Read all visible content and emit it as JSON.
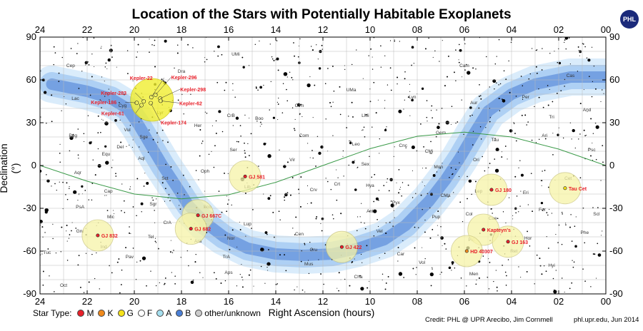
{
  "chart_data": {
    "type": "scatter",
    "title": "Location of the Stars with Potentially Habitable Exoplanets",
    "xlabel": "Right Ascension (hours)",
    "ylabel": "Declination (°)",
    "xlim": [
      24,
      0
    ],
    "ylim": [
      -90,
      90
    ],
    "x_ticks": [
      "24",
      "22",
      "20",
      "18",
      "16",
      "14",
      "12",
      "10",
      "08",
      "06",
      "04",
      "02",
      "00"
    ],
    "y_ticks": [
      "90",
      "60",
      "30",
      "0",
      "-30",
      "-60",
      "-90"
    ],
    "legend": {
      "label": "Star Type:",
      "entries": [
        {
          "name": "M",
          "color": "#e8202a"
        },
        {
          "name": "K",
          "color": "#f08a1c"
        },
        {
          "name": "G",
          "color": "#f6e21a"
        },
        {
          "name": "F",
          "color": "#ffffff"
        },
        {
          "name": "A",
          "color": "#a6e0f0"
        },
        {
          "name": "B",
          "color": "#4a7fd6"
        },
        {
          "name": "other/unknown",
          "color": "#cccccc"
        }
      ]
    },
    "stars": [
      {
        "name": "Kepler-22",
        "ra": 19.28,
        "dec": 47.9,
        "type": "G"
      },
      {
        "name": "Kepler-283",
        "ra": 19.6,
        "dec": 45.0,
        "type": "K"
      },
      {
        "name": "Kepler-186",
        "ra": 19.9,
        "dec": 43.9,
        "type": "M"
      },
      {
        "name": "Kepler-61",
        "ra": 19.7,
        "dec": 42.2,
        "type": "K"
      },
      {
        "name": "Kepler-296",
        "ra": 19.1,
        "dec": 49.5,
        "type": "M"
      },
      {
        "name": "Kepler-298",
        "ra": 18.9,
        "dec": 47.0,
        "type": "K"
      },
      {
        "name": "Kepler-62",
        "ra": 18.88,
        "dec": 45.3,
        "type": "K"
      },
      {
        "name": "Kepler-174",
        "ra": 19.3,
        "dec": 43.7,
        "type": "K"
      },
      {
        "name": "GJ 581",
        "ra": 15.3,
        "dec": -7.7,
        "type": "M"
      },
      {
        "name": "GJ 667C",
        "ra": 17.3,
        "dec": -34.9,
        "type": "M"
      },
      {
        "name": "GJ 682",
        "ra": 17.6,
        "dec": -44.3,
        "type": "M"
      },
      {
        "name": "GJ 832",
        "ra": 21.55,
        "dec": -49.0,
        "type": "M"
      },
      {
        "name": "GJ 422",
        "ra": 11.2,
        "dec": -57.1,
        "type": "M"
      },
      {
        "name": "GJ 180",
        "ra": 4.85,
        "dec": -17.0,
        "type": "M"
      },
      {
        "name": "Tau Cet",
        "ra": 1.73,
        "dec": -15.9,
        "type": "G"
      },
      {
        "name": "Kapteyn's",
        "ra": 5.19,
        "dec": -45.0,
        "type": "M"
      },
      {
        "name": "HD 40307",
        "ra": 5.9,
        "dec": -60.0,
        "type": "K"
      },
      {
        "name": "GJ 163",
        "ra": 4.15,
        "dec": -53.4,
        "type": "M"
      }
    ],
    "constellation_labels": [
      {
        "name": "UMi",
        "ra": 15.7,
        "dec": 77.0
      },
      {
        "name": "Cep",
        "ra": 22.7,
        "dec": 69.0
      },
      {
        "name": "Dra",
        "ra": 18.0,
        "dec": 65.0
      },
      {
        "name": "Cam",
        "ra": 6.0,
        "dec": 69.0
      },
      {
        "name": "Cas",
        "ra": 1.5,
        "dec": 62.0
      },
      {
        "name": "Lac",
        "ra": 22.5,
        "dec": 46.0
      },
      {
        "name": "CVn",
        "ra": 13.0,
        "dec": 41.0
      },
      {
        "name": "UMa",
        "ra": 10.8,
        "dec": 52.0
      },
      {
        "name": "Lyn",
        "ra": 8.2,
        "dec": 47.0
      },
      {
        "name": "Aur",
        "ra": 5.6,
        "dec": 43.0
      },
      {
        "name": "Per",
        "ra": 3.4,
        "dec": 47.0
      },
      {
        "name": "And",
        "ra": 0.8,
        "dec": 38.0
      },
      {
        "name": "Cyg",
        "ra": 20.5,
        "dec": 41.0
      },
      {
        "name": "Lyr",
        "ra": 18.9,
        "dec": 36.0
      },
      {
        "name": "Her",
        "ra": 17.3,
        "dec": 27.0
      },
      {
        "name": "CrB",
        "ra": 15.9,
        "dec": 34.0
      },
      {
        "name": "Boo",
        "ra": 14.7,
        "dec": 32.0
      },
      {
        "name": "Com",
        "ra": 12.8,
        "dec": 20.0
      },
      {
        "name": "LMi",
        "ra": 10.2,
        "dec": 34.0
      },
      {
        "name": "Leo",
        "ra": 10.6,
        "dec": 14.0
      },
      {
        "name": "Cnc",
        "ra": 8.6,
        "dec": 13.0
      },
      {
        "name": "Gem",
        "ra": 7.0,
        "dec": 22.0
      },
      {
        "name": "Tau",
        "ra": 4.7,
        "dec": 17.0
      },
      {
        "name": "Ari",
        "ra": 2.6,
        "dec": 20.0
      },
      {
        "name": "Psc",
        "ra": 0.6,
        "dec": 10.0
      },
      {
        "name": "Tri",
        "ra": 2.3,
        "dec": 33.0
      },
      {
        "name": "Peg",
        "ra": 22.6,
        "dec": 20.0
      },
      {
        "name": "Equ",
        "ra": 21.2,
        "dec": 7.0
      },
      {
        "name": "Del",
        "ra": 20.6,
        "dec": 12.0
      },
      {
        "name": "Sge",
        "ra": 19.6,
        "dec": 19.0
      },
      {
        "name": "Aql",
        "ra": 19.7,
        "dec": 4.0
      },
      {
        "name": "Ser",
        "ra": 15.8,
        "dec": 10.0
      },
      {
        "name": "Oph",
        "ra": 17.0,
        "dec": -5.0
      },
      {
        "name": "Vir",
        "ra": 13.3,
        "dec": 3.0
      },
      {
        "name": "Sex",
        "ra": 10.2,
        "dec": 0.0
      },
      {
        "name": "CMi",
        "ra": 7.5,
        "dec": 9.0
      },
      {
        "name": "Mon",
        "ra": 7.1,
        "dec": -2.0
      },
      {
        "name": "Ori",
        "ra": 5.5,
        "dec": 3.0
      },
      {
        "name": "Aqr",
        "ra": 22.4,
        "dec": -6.0
      },
      {
        "name": "Cap",
        "ra": 21.1,
        "dec": -19.0
      },
      {
        "name": "Sct",
        "ra": 18.7,
        "dec": -10.0
      },
      {
        "name": "Lib",
        "ra": 15.2,
        "dec": -16.0
      },
      {
        "name": "Crv",
        "ra": 12.4,
        "dec": -18.0
      },
      {
        "name": "Crt",
        "ra": 11.4,
        "dec": -14.0
      },
      {
        "name": "Hya",
        "ra": 10.0,
        "dec": -15.0
      },
      {
        "name": "CMa",
        "ra": 6.8,
        "dec": -22.0
      },
      {
        "name": "Lep",
        "ra": 5.4,
        "dec": -19.0
      },
      {
        "name": "Eri",
        "ra": 3.4,
        "dec": -20.0
      },
      {
        "name": "Cet",
        "ra": 1.6,
        "dec": -10.0
      },
      {
        "name": "PsA",
        "ra": 22.3,
        "dec": -30.0
      },
      {
        "name": "Mic",
        "ra": 21.0,
        "dec": -37.0
      },
      {
        "name": "Sgr",
        "ra": 19.2,
        "dec": -28.0
      },
      {
        "name": "CrA",
        "ra": 18.6,
        "dec": -41.0
      },
      {
        "name": "Sco",
        "ra": 16.9,
        "dec": -30.0
      },
      {
        "name": "Lup",
        "ra": 15.2,
        "dec": -42.0
      },
      {
        "name": "Cen",
        "ra": 13.0,
        "dec": -49.0
      },
      {
        "name": "Ant",
        "ra": 10.0,
        "dec": -33.0
      },
      {
        "name": "Pyx",
        "ra": 8.9,
        "dec": -27.0
      },
      {
        "name": "Pup",
        "ra": 7.2,
        "dec": -37.0
      },
      {
        "name": "Col",
        "ra": 5.8,
        "dec": -35.0
      },
      {
        "name": "Cae",
        "ra": 4.8,
        "dec": -38.0
      },
      {
        "name": "For",
        "ra": 2.7,
        "dec": -32.0
      },
      {
        "name": "Scl",
        "ra": 0.4,
        "dec": -35.0
      },
      {
        "name": "Gru",
        "ra": 22.3,
        "dec": -47.0
      },
      {
        "name": "Ind",
        "ra": 21.3,
        "dec": -58.0
      },
      {
        "name": "Tel",
        "ra": 19.3,
        "dec": -51.0
      },
      {
        "name": "Ara",
        "ra": 17.3,
        "dec": -54.0
      },
      {
        "name": "Nor",
        "ra": 15.9,
        "dec": -52.0
      },
      {
        "name": "Cru",
        "ra": 12.4,
        "dec": -60.0
      },
      {
        "name": "Vel",
        "ra": 9.6,
        "dec": -47.0
      },
      {
        "name": "Car",
        "ra": 8.7,
        "dec": -63.0
      },
      {
        "name": "Pic",
        "ra": 5.7,
        "dec": -53.0
      },
      {
        "name": "Hor",
        "ra": 3.3,
        "dec": -52.0
      },
      {
        "name": "Phe",
        "ra": 0.9,
        "dec": -48.0
      },
      {
        "name": "Tuc",
        "ra": 23.7,
        "dec": -62.0
      },
      {
        "name": "Pav",
        "ra": 20.2,
        "dec": -65.0
      },
      {
        "name": "TrA",
        "ra": 16.1,
        "dec": -65.0
      },
      {
        "name": "Mus",
        "ra": 12.6,
        "dec": -70.0
      },
      {
        "name": "Vol",
        "ra": 7.8,
        "dec": -69.0
      },
      {
        "name": "Ret",
        "ra": 3.9,
        "dec": -61.0
      },
      {
        "name": "Hyi",
        "ra": 2.3,
        "dec": -71.0
      },
      {
        "name": "Men",
        "ra": 5.6,
        "dec": -77.0
      },
      {
        "name": "Aps",
        "ra": 16.0,
        "dec": -76.0
      },
      {
        "name": "Oct",
        "ra": 23.0,
        "dec": -85.0
      },
      {
        "name": "Cha",
        "ra": 10.5,
        "dec": -79.0
      },
      {
        "name": "Vul",
        "ra": 20.3,
        "dec": 24.0
      },
      {
        "name": "Lyr",
        "ra": 18.9,
        "dec": 36.0
      }
    ],
    "ecliptic": [
      [
        24,
        0
      ],
      [
        22,
        -11
      ],
      [
        20,
        -20
      ],
      [
        18,
        -23.4
      ],
      [
        16,
        -20.5
      ],
      [
        14,
        -11.8
      ],
      [
        12,
        0
      ],
      [
        10,
        11.8
      ],
      [
        8,
        20.5
      ],
      [
        6,
        23.4
      ],
      [
        4,
        20
      ],
      [
        2,
        11.5
      ],
      [
        0,
        0
      ]
    ],
    "milky_way": [
      [
        23.5,
        57
      ],
      [
        22,
        52
      ],
      [
        21,
        47
      ],
      [
        20.3,
        40
      ],
      [
        19.8,
        28
      ],
      [
        19.3,
        14
      ],
      [
        18.8,
        0
      ],
      [
        18.2,
        -15
      ],
      [
        17.7,
        -28
      ],
      [
        17.0,
        -40
      ],
      [
        16.2,
        -50
      ],
      [
        15.2,
        -58
      ],
      [
        14.0,
        -62
      ],
      [
        12.8,
        -63
      ],
      [
        11.6,
        -62
      ],
      [
        10.5,
        -58
      ],
      [
        9.4,
        -52
      ],
      [
        8.5,
        -42
      ],
      [
        7.5,
        -25
      ],
      [
        6.8,
        -10
      ],
      [
        6.2,
        5
      ],
      [
        5.6,
        22
      ],
      [
        5.0,
        38
      ],
      [
        4.0,
        50
      ],
      [
        3.0,
        57
      ],
      [
        1.5,
        62
      ],
      [
        0,
        62
      ]
    ],
    "grid": true,
    "credit": "Credit: PHL @ UPR Arecibo, Jim Cornmell",
    "site": "phl.upr.edu, Jun 2014",
    "logo_text": "PHL"
  }
}
